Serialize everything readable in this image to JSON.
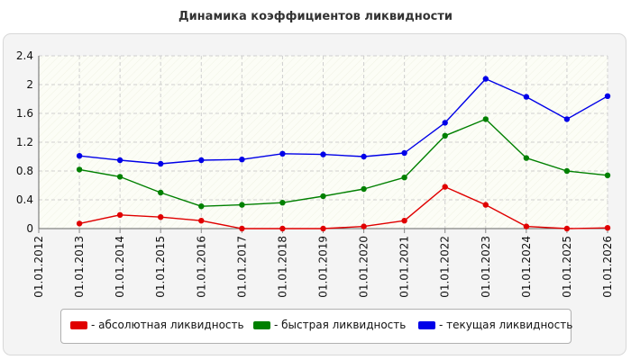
{
  "chart_data": {
    "type": "line",
    "title": "Динамика коэффициентов ликвидности",
    "xlabel": "",
    "ylabel": "",
    "x": [
      "01.01.2012",
      "01.01.2013",
      "01.01.2014",
      "01.01.2015",
      "01.01.2016",
      "01.01.2017",
      "01.01.2018",
      "01.01.2019",
      "01.01.2020",
      "01.01.2021",
      "01.01.2022",
      "01.01.2023",
      "01.01.2024",
      "01.01.2025",
      "01.01.2026"
    ],
    "ylim": [
      0,
      2.4
    ],
    "yticks": [
      "0",
      "0.4",
      "0.8",
      "1.2",
      "1.6",
      "2",
      "2.4"
    ],
    "grid": true,
    "legend_position": "bottom",
    "series": [
      {
        "name": "- абсолютная ликвидность",
        "color": "#e00000",
        "values": [
          null,
          0.07,
          0.19,
          0.16,
          0.11,
          0.0,
          0.0,
          0.0,
          0.03,
          0.11,
          0.58,
          0.33,
          0.03,
          0.0,
          0.01
        ]
      },
      {
        "name": "- быстрая ликвидность",
        "color": "#008000",
        "values": [
          null,
          0.82,
          0.72,
          0.5,
          0.31,
          0.33,
          0.36,
          0.45,
          0.55,
          0.71,
          1.29,
          1.52,
          0.98,
          0.8,
          0.74
        ]
      },
      {
        "name": "- текущая ликвидность",
        "color": "#0000e8",
        "values": [
          null,
          1.01,
          0.95,
          0.9,
          0.95,
          0.96,
          1.04,
          1.03,
          1.0,
          1.05,
          1.47,
          2.08,
          1.83,
          1.52,
          1.84
        ]
      }
    ]
  }
}
